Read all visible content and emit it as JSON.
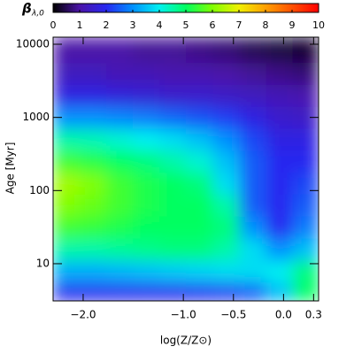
{
  "chart_data": {
    "type": "heatmap",
    "xlabel": "log(Z/Z⊙)",
    "ylabel": "Age [Myr]",
    "colorbar_label": "β",
    "colorbar_label_sub": "λ,0",
    "x": [
      -2.17,
      -1.9,
      -1.64,
      -1.37,
      -1.11,
      -0.84,
      -0.57,
      -0.31,
      -0.04,
      0.22
    ],
    "y": [
      4,
      7.9,
      15.8,
      31.6,
      63.1,
      126,
      251,
      501,
      1000,
      1995,
      3981,
      7943
    ],
    "z": [
      [
        2,
        2,
        2,
        2,
        2,
        2.1,
        2.2,
        2.5,
        3.5,
        5
      ],
      [
        3.3,
        3.3,
        3.4,
        3.5,
        3.6,
        3.7,
        3.8,
        3.8,
        4,
        4.8
      ],
      [
        4.5,
        4.5,
        4.6,
        4.7,
        4.8,
        4.8,
        4.5,
        3.8,
        3,
        3.5
      ],
      [
        5.5,
        5.4,
        5.2,
        5,
        5,
        5,
        4.8,
        3,
        2,
        2.8
      ],
      [
        6,
        5.8,
        5.5,
        5.2,
        5,
        5,
        4.5,
        2.5,
        2,
        2.5
      ],
      [
        6.3,
        6,
        5.5,
        5.2,
        5,
        4.8,
        3.8,
        2.5,
        2,
        2.3
      ],
      [
        5.5,
        5.3,
        5,
        4.8,
        4.5,
        4.2,
        3.5,
        2.5,
        2,
        2
      ],
      [
        4.5,
        4.4,
        4.2,
        4,
        3.8,
        3.5,
        3,
        2.3,
        1.8,
        1.8
      ],
      [
        3,
        3,
        2.9,
        2.8,
        2.6,
        2.4,
        2.2,
        1.8,
        1.5,
        1.4
      ],
      [
        1.8,
        1.8,
        1.7,
        1.6,
        1.5,
        1.5,
        1.4,
        1.3,
        1.2,
        1.1
      ],
      [
        1.3,
        1.3,
        1.2,
        1.2,
        1.1,
        1.1,
        1,
        0.9,
        0.8,
        0.7
      ],
      [
        1,
        1,
        1,
        0.9,
        0.9,
        0.8,
        0.7,
        0.5,
        0.4,
        0.3
      ]
    ],
    "xlim": [
      -2.3,
      0.35
    ],
    "xticks": [
      {
        "value": -2.0,
        "label": "−2.0"
      },
      {
        "value": -1.0,
        "label": "−1.0"
      },
      {
        "value": -0.5,
        "label": "−0.5"
      },
      {
        "value": 0.0,
        "label": "0.0"
      },
      0.3
    ],
    "ylim": [
      3.1,
      12500
    ],
    "yticks": [
      10,
      100,
      1000,
      10000
    ],
    "ylog": true,
    "zlim": [
      0,
      10
    ],
    "zticks": [
      0,
      1,
      2,
      3,
      4,
      5,
      6,
      7,
      8,
      9,
      10
    ],
    "colormap": [
      "#000000",
      "#4b14a8",
      "#2828f0",
      "#0090ff",
      "#00f0f0",
      "#00ff60",
      "#80ff00",
      "#f0f000",
      "#ffa000",
      "#ff5000",
      "#ff0000"
    ]
  }
}
